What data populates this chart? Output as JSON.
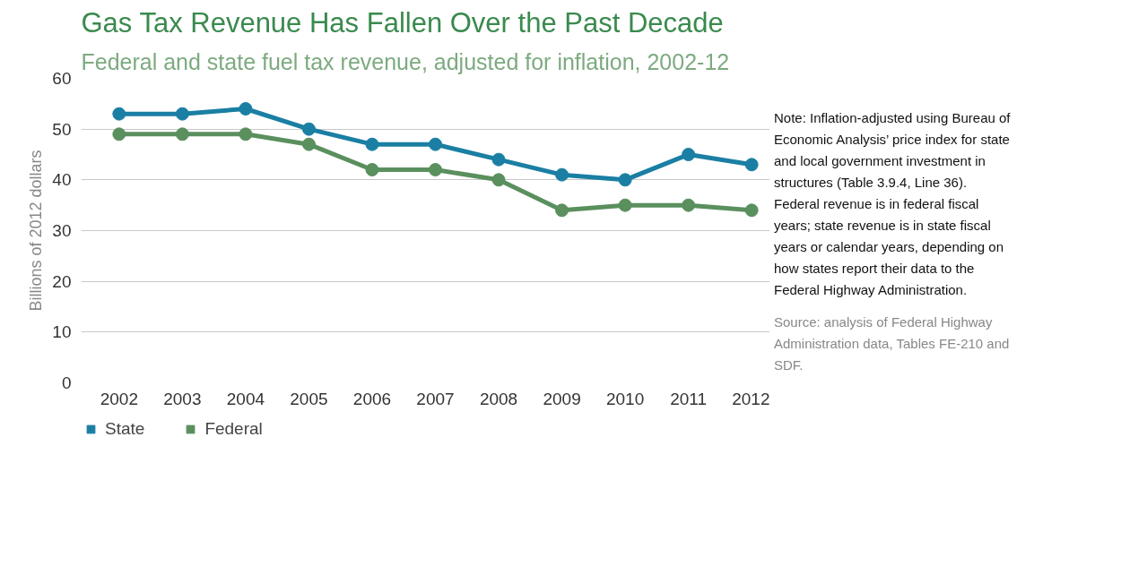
{
  "chart_data": {
    "type": "line",
    "title": "Gas Tax Revenue Has Fallen Over the Past Decade",
    "subtitle": "Federal and state fuel tax revenue, adjusted for inflation, 2002-12",
    "ylabel": "Billions of 2012 dollars",
    "categories": [
      "2002",
      "2003",
      "2004",
      "2005",
      "2006",
      "2007",
      "2008",
      "2009",
      "2010",
      "2011",
      "2012"
    ],
    "series": [
      {
        "name": "State",
        "color": "#1a7fa3",
        "values": [
          53,
          53,
          54,
          50,
          47,
          47,
          44,
          41,
          40,
          45,
          43
        ]
      },
      {
        "name": "Federal",
        "color": "#5a8f5e",
        "values": [
          49,
          49,
          49,
          47,
          42,
          42,
          40,
          34,
          35,
          35,
          34
        ]
      }
    ],
    "ylim": [
      0,
      60
    ],
    "yticks": [
      0,
      10,
      20,
      30,
      40,
      50,
      60
    ],
    "grid": "y",
    "legend": "bottom",
    "marker": "circle",
    "line_style": "solid",
    "annotations": [
      "Note: Inflation-adjusted using Bureau of Economic Analysis’ price index for state and local government investment in structures (Table 3.9.4, Line 36). Federal revenue is in federal fiscal years; state revenue is in state fiscal years or calendar years, depending on how states report their data to the Federal Highway Administration.",
      "Source: analysis of Federal Highway Administration data, Tables FE-210 and SDF."
    ]
  }
}
